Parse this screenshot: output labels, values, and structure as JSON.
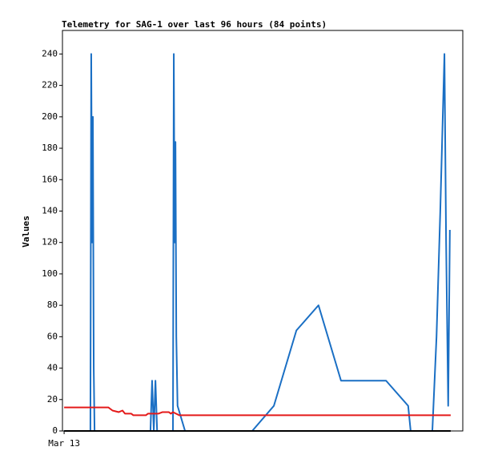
{
  "chart_data": {
    "type": "line",
    "title": "Telemetry for SAG-1 over last 96 hours (84 points)",
    "y_label": "Values",
    "xlim": [
      0,
      96
    ],
    "xticks": [
      {
        "value": 0.4,
        "label": "Mar 13"
      }
    ],
    "ylim": [
      0,
      255
    ],
    "yticks": [
      0,
      20,
      40,
      60,
      80,
      100,
      120,
      140,
      160,
      180,
      200,
      220,
      240
    ],
    "grid": false,
    "series": [
      {
        "color": "#1a6fc4",
        "x": [
          0.4,
          6.7,
          6.9,
          7.1,
          7.3,
          7.5,
          7.7,
          21.1,
          21.5,
          21.9,
          22.3,
          22.7,
          26.5,
          26.7,
          26.9,
          27.1,
          27.3,
          27.6,
          29.4,
          45.5,
          50.7,
          56.1,
          61.4,
          66.8,
          77.6,
          82.9,
          83.5,
          88.7,
          89.7,
          90.6,
          91.6,
          92.0,
          92.5,
          92.9
        ],
        "values": [
          0,
          0,
          240,
          120,
          200,
          40,
          0,
          0,
          32,
          0,
          32,
          0,
          0,
          240,
          120,
          184,
          60,
          16,
          0,
          0,
          16,
          64,
          80,
          32,
          32,
          16,
          0,
          0,
          60,
          140,
          240,
          120,
          16,
          128
        ]
      },
      {
        "color": "#e41a1a",
        "x": [
          0.4,
          11,
          12,
          13.5,
          14.4,
          15,
          16.5,
          17,
          20,
          20.5,
          23,
          24,
          25.5,
          26,
          26.5,
          28,
          93.1
        ],
        "values": [
          15,
          15,
          13,
          12,
          13,
          11,
          11,
          10,
          10,
          11,
          11,
          12,
          12,
          11,
          12,
          10,
          10
        ]
      },
      {
        "color": "#000000",
        "x": [
          0.4,
          93.1
        ],
        "values": [
          0,
          0
        ]
      }
    ]
  }
}
